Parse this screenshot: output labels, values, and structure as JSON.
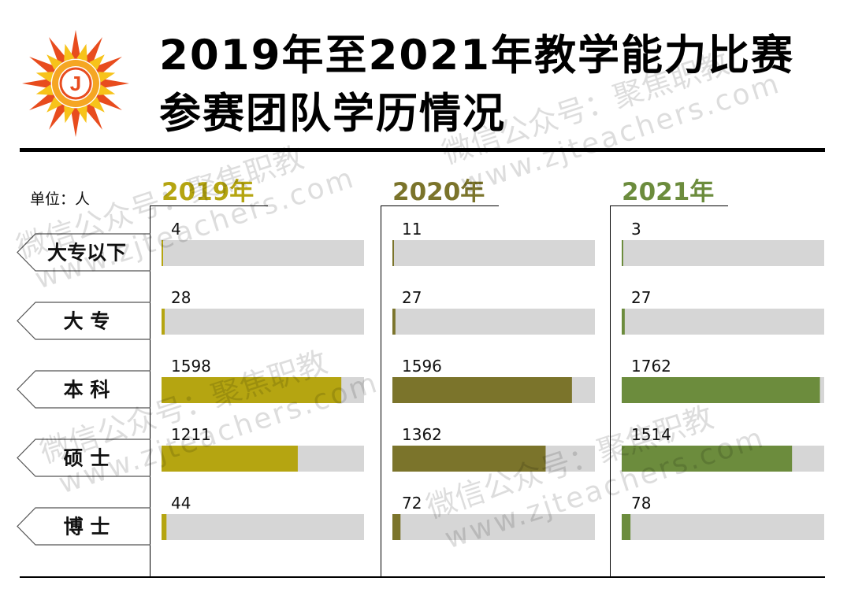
{
  "title": {
    "line1": "2019年至2021年教学能力比赛",
    "line2": "参赛团队学历情况"
  },
  "unit_label": "单位：人",
  "logo": {
    "icon": "sun-j-logo-icon",
    "letter": "J",
    "colors": [
      "#e84c1e",
      "#f5a623",
      "#f7c31a"
    ]
  },
  "watermark": {
    "lines": [
      "微信公众号：聚焦职教",
      "www.zjteachers.com"
    ]
  },
  "colors": {
    "track": "#d6d6d6",
    "y2019": "#b5a511",
    "y2020": "#7b742b",
    "y2021": "#6c8c3d"
  },
  "chart_data": {
    "type": "bar",
    "orientation": "horizontal",
    "categories": [
      "大专以下",
      "大 专",
      "本 科",
      "硕 士",
      "博 士"
    ],
    "series": [
      {
        "name": "2019年",
        "values": [
          4,
          28,
          1598,
          1211,
          44
        ],
        "color": "#b5a511"
      },
      {
        "name": "2020年",
        "values": [
          11,
          27,
          1596,
          1362,
          72
        ],
        "color": "#7b742b"
      },
      {
        "name": "2021年",
        "values": [
          3,
          27,
          1762,
          1514,
          78
        ],
        "color": "#6c8c3d"
      }
    ],
    "xlim": [
      0,
      1800
    ],
    "grid": false,
    "legend": "panel titles above each panel"
  }
}
